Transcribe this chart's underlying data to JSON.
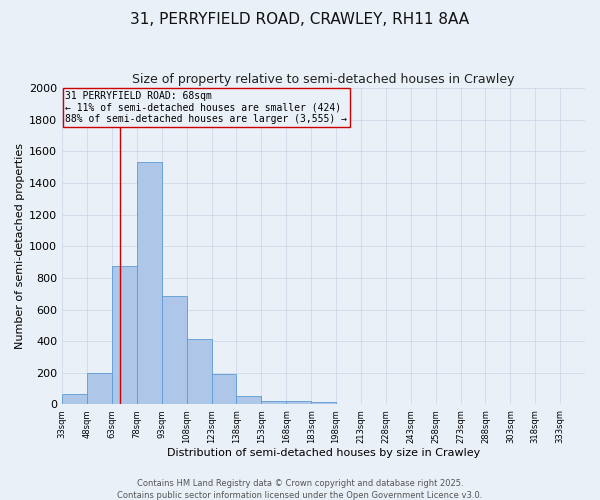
{
  "title_line1": "31, PERRYFIELD ROAD, CRAWLEY, RH11 8AA",
  "title_line2": "Size of property relative to semi-detached houses in Crawley",
  "xlabel": "Distribution of semi-detached houses by size in Crawley",
  "ylabel": "Number of semi-detached properties",
  "footer_line1": "Contains HM Land Registry data © Crown copyright and database right 2025.",
  "footer_line2": "Contains public sector information licensed under the Open Government Licence v3.0.",
  "bin_labels": [
    "33sqm",
    "48sqm",
    "63sqm",
    "78sqm",
    "93sqm",
    "108sqm",
    "123sqm",
    "138sqm",
    "153sqm",
    "168sqm",
    "183sqm",
    "198sqm",
    "213sqm",
    "228sqm",
    "243sqm",
    "258sqm",
    "273sqm",
    "288sqm",
    "303sqm",
    "318sqm",
    "333sqm"
  ],
  "bin_edges": [
    33,
    48,
    63,
    78,
    93,
    108,
    123,
    138,
    153,
    168,
    183,
    198,
    213,
    228,
    243,
    258,
    273,
    288,
    303,
    318,
    333
  ],
  "bar_heights": [
    65,
    200,
    875,
    1530,
    685,
    415,
    195,
    55,
    25,
    20,
    15,
    0,
    0,
    0,
    0,
    0,
    0,
    0,
    0,
    0
  ],
  "bar_color": "#aec6e8",
  "bar_edgecolor": "#5b9bd5",
  "property_size": 68,
  "property_line_color": "#cc0000",
  "annotation_line1": "31 PERRYFIELD ROAD: 68sqm",
  "annotation_line2": "← 11% of semi-detached houses are smaller (424)",
  "annotation_line3": "88% of semi-detached houses are larger (3,555) →",
  "annotation_box_edgecolor": "#cc0000",
  "ylim": [
    0,
    2000
  ],
  "yticks": [
    0,
    200,
    400,
    600,
    800,
    1000,
    1200,
    1400,
    1600,
    1800,
    2000
  ],
  "grid_color": "#d0d8e8",
  "background_color": "#eaf0f8",
  "title_fontsize": 11,
  "subtitle_fontsize": 9,
  "ylabel_fontsize": 8,
  "xlabel_fontsize": 8,
  "ytick_fontsize": 8,
  "xtick_fontsize": 6,
  "annotation_fontsize": 7,
  "footer_fontsize": 6
}
